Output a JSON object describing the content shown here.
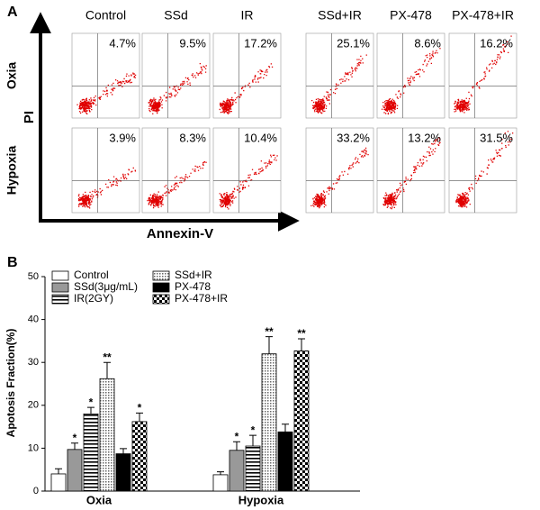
{
  "panel_a": {
    "label": "A",
    "columns": [
      "Control",
      "SSd",
      "IR",
      "SSd+IR",
      "PX-478",
      "PX-478+IR"
    ],
    "rows": [
      "Oxia",
      "Hypoxia"
    ],
    "y_axis": "PI",
    "x_axis": "Annexin-V",
    "percentages": [
      [
        "4.7%",
        "9.5%",
        "17.2%",
        "25.1%",
        "8.6%",
        "16.2%"
      ],
      [
        "3.9%",
        "8.3%",
        "10.4%",
        "33.2%",
        "13.2%",
        "31.5%"
      ]
    ]
  },
  "chart_data": {
    "type": "bar",
    "label": "B",
    "y_label": "Apotosis Fraction(%)",
    "categories": [
      "Oxia",
      "Hypoxia"
    ],
    "ylim": [
      0,
      50
    ],
    "yticks": [
      0,
      10,
      20,
      30,
      40,
      50
    ],
    "series": [
      {
        "name": "Control",
        "color": "#ffffff",
        "pattern": "solid",
        "values": [
          4,
          3.8
        ],
        "errors": [
          1.2,
          0.7
        ],
        "stars": [
          null,
          null
        ]
      },
      {
        "name": "SSd(3μg/mL)",
        "color": "#999999",
        "pattern": "solid",
        "values": [
          9.7,
          9.5
        ],
        "errors": [
          1.5,
          2
        ],
        "stars": [
          "*",
          "*"
        ]
      },
      {
        "name": "IR(2GY)",
        "color": "#ffffff",
        "pattern": "hstripe",
        "values": [
          18,
          10.5
        ],
        "errors": [
          1.5,
          2.5
        ],
        "stars": [
          "*",
          "*"
        ]
      },
      {
        "name": "SSd+IR",
        "color": "#cccccc",
        "pattern": "dots",
        "values": [
          26.2,
          32
        ],
        "errors": [
          3.8,
          4
        ],
        "stars": [
          "**",
          "**"
        ]
      },
      {
        "name": "PX-478",
        "color": "#000000",
        "pattern": "solid",
        "values": [
          8.7,
          13.8
        ],
        "errors": [
          1.2,
          1.8
        ],
        "stars": [
          null,
          null
        ]
      },
      {
        "name": "PX-478+IR",
        "color": "#000000",
        "pattern": "checker",
        "values": [
          16.2,
          32.7
        ],
        "errors": [
          2,
          2.8
        ],
        "stars": [
          "*",
          "**"
        ]
      }
    ]
  }
}
